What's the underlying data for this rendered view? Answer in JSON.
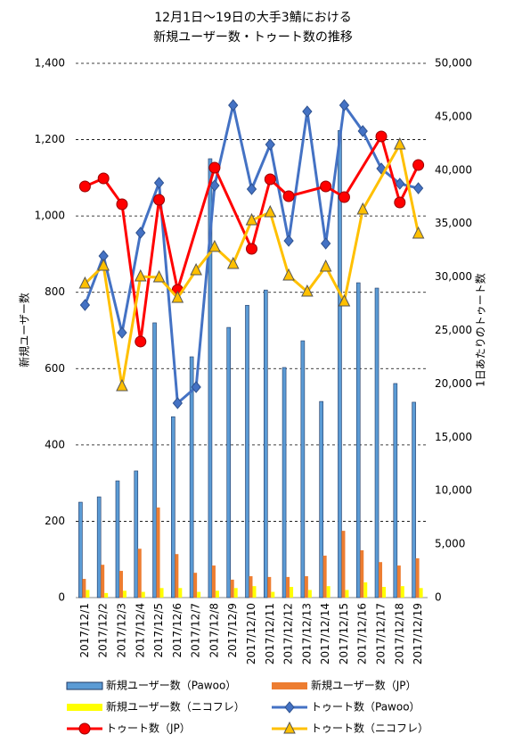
{
  "chart_data": {
    "type": "bar_line",
    "title_lines": [
      "12月1日～19日の大手3鯖における",
      "新規ユーザー数・トゥート数の推移"
    ],
    "y_label": "新規ユーザー数",
    "y2_label": "1日あたりのトゥート数",
    "categories": [
      "2017/12/1",
      "2017/12/2",
      "2017/12/3",
      "2017/12/4",
      "2017/12/5",
      "2017/12/6",
      "2017/12/7",
      "2017/12/8",
      "2017/12/9",
      "2017/12/10",
      "2017/12/11",
      "2017/12/12",
      "2017/12/13",
      "2017/12/14",
      "2017/12/15",
      "2017/12/16",
      "2017/12/17",
      "2017/12/18",
      "2017/12/19"
    ],
    "ylim": [
      0,
      1400
    ],
    "yticks": [
      0,
      200,
      400,
      600,
      800,
      {
        "value": 1000,
        "label": "1,000"
      },
      {
        "value": 1200,
        "label": "1,200"
      },
      {
        "value": 1400,
        "label": "1,400"
      }
    ],
    "y2lim": [
      0,
      50000
    ],
    "y2ticks": [
      0,
      {
        "value": 5000,
        "label": "5,000"
      },
      {
        "value": 10000,
        "label": "10,000"
      },
      {
        "value": 15000,
        "label": "15,000"
      },
      {
        "value": 20000,
        "label": "20,000"
      },
      {
        "value": 25000,
        "label": "25,000"
      },
      {
        "value": 30000,
        "label": "30,000"
      },
      {
        "value": 35000,
        "label": "35,000"
      },
      {
        "value": 40000,
        "label": "40,000"
      },
      {
        "value": 45000,
        "label": "45,000"
      },
      {
        "value": 50000,
        "label": "50,000"
      }
    ],
    "grid": true,
    "series": [
      {
        "name": "新規ユーザー数（Pawoo）",
        "kind": "bar",
        "color": "#5b9bd5",
        "values": [
          250,
          264,
          306,
          332,
          720,
          474,
          631,
          1150,
          708,
          766,
          806,
          603,
          673,
          514,
          1224,
          825,
          811,
          561,
          512
        ]
      },
      {
        "name": "新規ユーザー数（JP）",
        "kind": "bar",
        "color": "#ed7d31",
        "values": [
          49,
          86,
          70,
          128,
          236,
          114,
          65,
          84,
          47,
          56,
          54,
          54,
          56,
          110,
          175,
          124,
          93,
          84,
          103
        ]
      },
      {
        "name": "新規ユーザー数（ニコフレ）",
        "kind": "bar",
        "color": "#ffff00",
        "values": [
          20,
          12,
          18,
          15,
          25,
          25,
          15,
          18,
          25,
          30,
          15,
          28,
          20,
          30,
          20,
          40,
          28,
          30,
          25
        ]
      },
      {
        "name": "トゥート数（Pawoo）",
        "kind": "line",
        "axis": "y2",
        "color": "#4472c4",
        "marker": "diamond",
        "values": [
          27380,
          31970,
          24790,
          34140,
          38810,
          18200,
          19700,
          38560,
          46080,
          38230,
          42400,
          33390,
          45490,
          33140,
          46080,
          43660,
          40150,
          38730,
          38310
        ]
      },
      {
        "name": "トゥート数（JP）",
        "kind": "line",
        "axis": "y2",
        "color": "#ff0000",
        "marker": "circle",
        "values": [
          38480,
          39230,
          36810,
          23960,
          37230,
          28800,
          null,
          40230,
          null,
          32640,
          39150,
          37560,
          null,
          38480,
          37480,
          null,
          43160,
          36980,
          40480
        ]
      },
      {
        "name": "トゥート数（ニコフレ）",
        "kind": "line",
        "axis": "y2",
        "color": "#ffc000",
        "marker": "triangle",
        "values": [
          29380,
          31050,
          19780,
          30050,
          29970,
          28050,
          30630,
          32810,
          31220,
          35310,
          36060,
          30130,
          28630,
          30970,
          27710,
          36310,
          null,
          42400,
          34060
        ]
      }
    ]
  }
}
